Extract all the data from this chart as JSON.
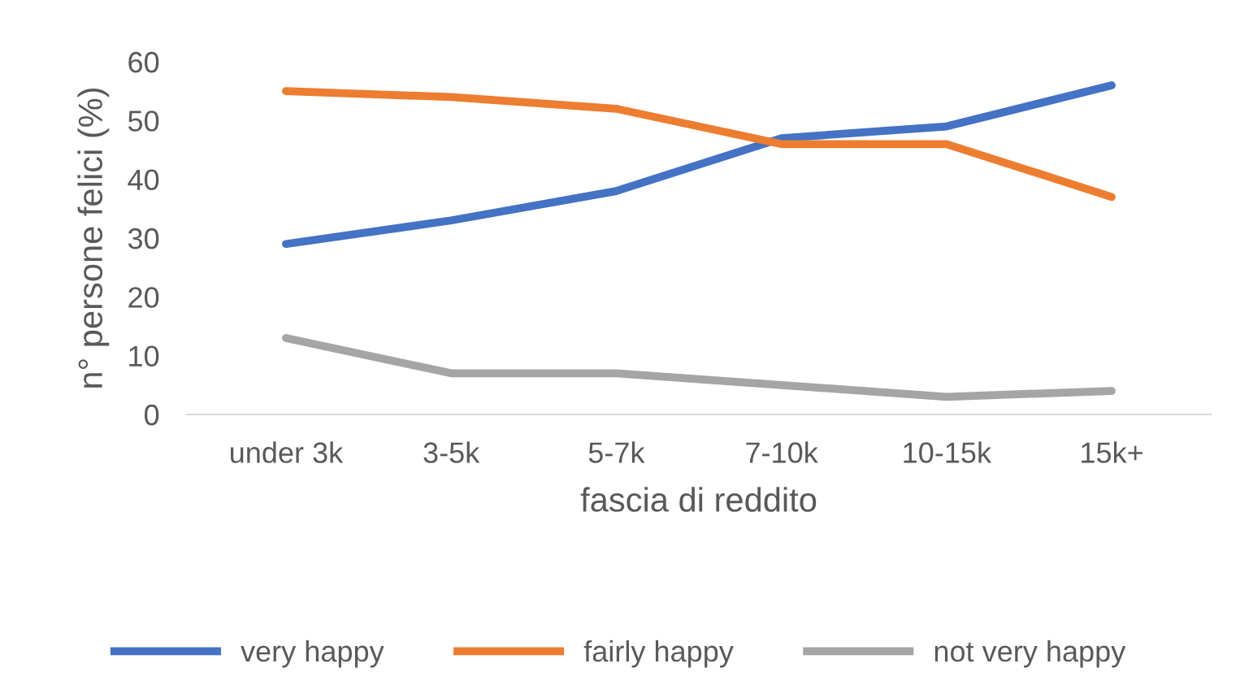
{
  "chart_data": {
    "type": "line",
    "xlabel": "fascia di reddito",
    "ylabel": "n° persone felici (%)",
    "categories": [
      "under 3k",
      "3-5k",
      "5-7k",
      "7-10k",
      "10-15k",
      "15k+"
    ],
    "series": [
      {
        "name": "very happy",
        "color": "#4472c4",
        "values": [
          29,
          33,
          38,
          47,
          49,
          56
        ]
      },
      {
        "name": "fairly happy",
        "color": "#ed7d31",
        "values": [
          55,
          54,
          52,
          46,
          46,
          37
        ]
      },
      {
        "name": "not very happy",
        "color": "#a5a5a5",
        "values": [
          13,
          7,
          7,
          5,
          3,
          4
        ]
      }
    ],
    "ylim": [
      0,
      60
    ],
    "yticks": [
      0,
      10,
      20,
      30,
      40,
      50,
      60
    ],
    "grid": false,
    "legend": "bottom",
    "marker": "none",
    "line_style": "solid"
  }
}
